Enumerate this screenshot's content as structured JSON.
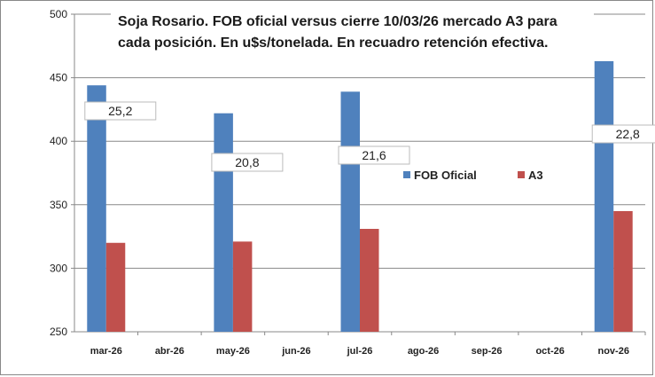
{
  "chart_data": {
    "type": "bar",
    "title_lines": [
      "Soja Rosario. FOB oficial versus cierre 10/03/26 mercado A3 para",
      "cada posición. En u$s/tonelada. En recuadro retención efectiva."
    ],
    "categories": [
      "mar-26",
      "abr-26",
      "may-26",
      "jun-26",
      "jul-26",
      "ago-26",
      "sep-26",
      "oct-26",
      "nov-26"
    ],
    "series": [
      {
        "name": "FOB Oficial",
        "color": "#4f81bd",
        "values": [
          444,
          null,
          422,
          null,
          439,
          null,
          null,
          null,
          463
        ]
      },
      {
        "name": "A3",
        "color": "#c0504d",
        "values": [
          320,
          null,
          321,
          null,
          331,
          null,
          null,
          null,
          345
        ]
      }
    ],
    "retention_labels": [
      {
        "category": "mar-26",
        "text": "25,2"
      },
      {
        "category": "may-26",
        "text": "20,8"
      },
      {
        "category": "jul-26",
        "text": "21,6"
      },
      {
        "category": "nov-26",
        "text": "22,8"
      }
    ],
    "ylim": [
      250,
      500
    ],
    "yticks": [
      250,
      300,
      350,
      400,
      450,
      500
    ],
    "grid": true,
    "legend_position": "center-right"
  }
}
